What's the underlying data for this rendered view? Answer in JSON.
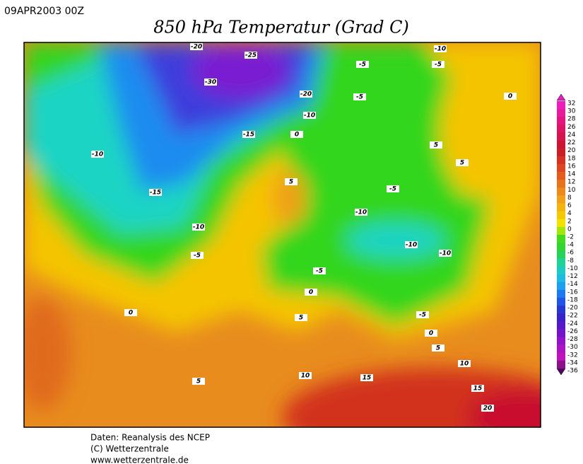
{
  "header": {
    "date": "09APR2003 00Z",
    "title": "850 hPa Temperatur (Grad C)"
  },
  "colorbar": {
    "levels": [
      32,
      30,
      28,
      26,
      24,
      22,
      20,
      18,
      16,
      14,
      12,
      10,
      8,
      6,
      4,
      2,
      0,
      -2,
      -4,
      -6,
      -8,
      -10,
      -12,
      -14,
      -16,
      -18,
      -20,
      -22,
      -24,
      -26,
      -28,
      -30,
      -32,
      -34,
      -36
    ]
  },
  "map": {
    "contour_labels": [
      "-20",
      "-25",
      "-30",
      "-20",
      "-10",
      "-15",
      "0",
      "-5",
      "-10",
      "-5",
      "-5",
      "0",
      "5",
      "5",
      "-10",
      "-15",
      "5",
      "-5",
      "-10",
      "-10",
      "-5",
      "-10",
      "-10",
      "-5",
      "0",
      "0",
      "5",
      "-5",
      "0",
      "5",
      "10",
      "10",
      "15",
      "5",
      "15",
      "20"
    ]
  },
  "footer": {
    "lines": [
      "Daten: Reanalysis des NCEP",
      "(C) Wetterzentrale",
      "www.wetterzentrale.de"
    ]
  }
}
